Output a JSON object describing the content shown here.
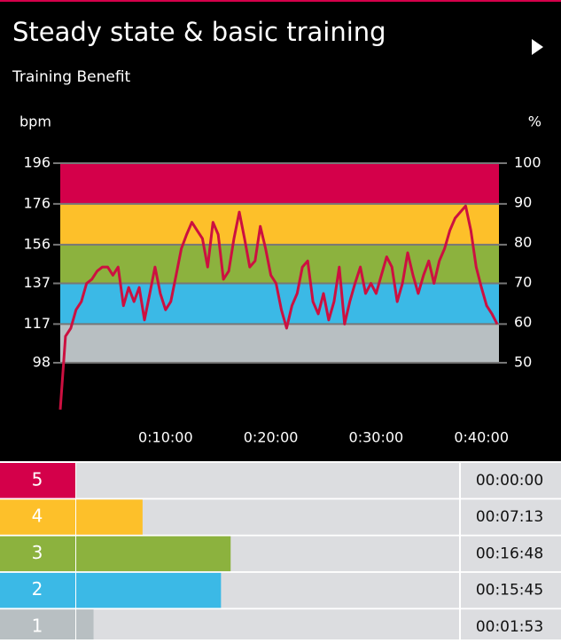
{
  "chart_data": [
    {
      "type": "line",
      "title": "Steady state & basic training",
      "subtitle": "Training Benefit",
      "y_label": "bpm",
      "y2_label": "%",
      "x": [
        0,
        30,
        60,
        90,
        120,
        150,
        180,
        210,
        240,
        270,
        300,
        330,
        360,
        390,
        420,
        450,
        480,
        510,
        540,
        570,
        600,
        630,
        660,
        690,
        720,
        750,
        780,
        810,
        840,
        870,
        900,
        930,
        960,
        990,
        1020,
        1050,
        1080,
        1110,
        1140,
        1170,
        1200,
        1230,
        1260,
        1290,
        1320,
        1350,
        1380,
        1410,
        1440,
        1470,
        1500,
        1530,
        1560,
        1590,
        1620,
        1650,
        1680,
        1710,
        1740,
        1770,
        1800,
        1830,
        1860,
        1890,
        1920,
        1950,
        1980,
        2010,
        2040,
        2070,
        2100,
        2130,
        2160,
        2190,
        2220,
        2250,
        2280,
        2310,
        2340,
        2370,
        2400,
        2430,
        2460,
        2490
      ],
      "series": [
        {
          "color": "#cc1040",
          "values": [
            75,
            111,
            115,
            124,
            128,
            137,
            139,
            143,
            145,
            145,
            141,
            145,
            126,
            135,
            128,
            135,
            119,
            132,
            145,
            132,
            124,
            128,
            141,
            154,
            161,
            167,
            163,
            159,
            145,
            167,
            161,
            139,
            143,
            159,
            172,
            159,
            145,
            148,
            165,
            154,
            141,
            137,
            124,
            115,
            126,
            132,
            145,
            148,
            128,
            122,
            132,
            119,
            128,
            145,
            117,
            128,
            137,
            145,
            132,
            137,
            132,
            141,
            150,
            145,
            128,
            137,
            152,
            141,
            132,
            141,
            148,
            137,
            148,
            154,
            163,
            169,
            172,
            175,
            163,
            145,
            135,
            126,
            122,
            117
          ]
        }
      ],
      "xlim": [
        0,
        2500
      ],
      "xticks": [
        {
          "value": 600,
          "label": "0:10:00"
        },
        {
          "value": 1200,
          "label": "0:20:00"
        },
        {
          "value": 1800,
          "label": "0:30:00"
        },
        {
          "value": 2400,
          "label": "0:40:00"
        }
      ],
      "ylim": [
        98,
        196
      ],
      "yticks": [
        98,
        117,
        137,
        156,
        176,
        196
      ],
      "y2lim": [
        50,
        100
      ],
      "y2ticks": [
        50,
        60,
        70,
        80,
        90,
        100
      ],
      "band_colors": [
        "#b8bfc2",
        "#3bb9e6",
        "#8cb23e",
        "#fdc02a",
        "#d4004a"
      ],
      "grid": true
    },
    {
      "type": "bar",
      "categories": [
        "5",
        "4",
        "3",
        "2",
        "1"
      ],
      "values": [
        0,
        433,
        1008,
        945,
        113
      ],
      "value_labels": [
        "00:00:00",
        "00:07:13",
        "00:16:48",
        "00:15:45",
        "00:01:53"
      ],
      "colors": [
        "#d4004a",
        "#fdc02a",
        "#8cb23e",
        "#3bb9e6",
        "#b8bfc2"
      ]
    }
  ]
}
